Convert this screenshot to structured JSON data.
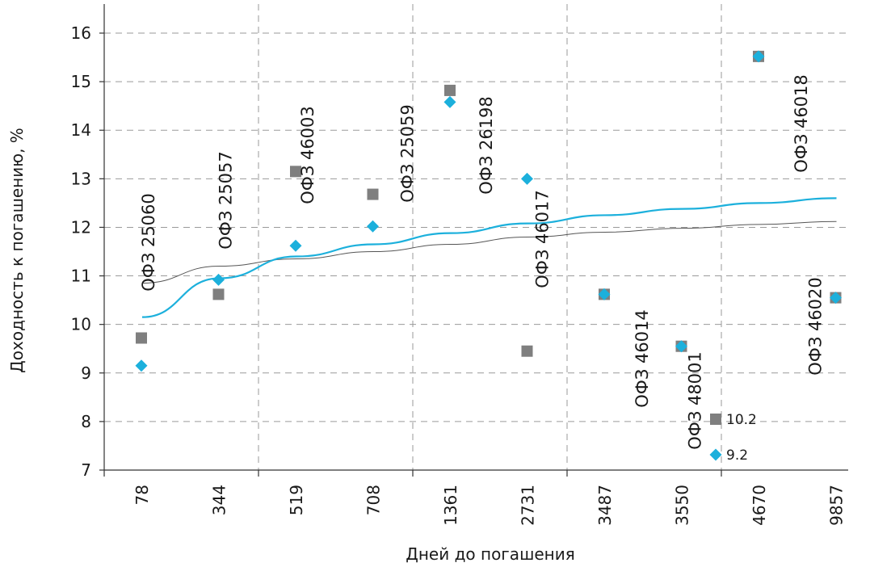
{
  "chart_data": {
    "type": "scatter",
    "title": "",
    "xlabel": "Дней до погашения",
    "ylabel": "Доходность к погашению, %",
    "ylim": [
      7,
      16.5
    ],
    "yticks": [
      7,
      8,
      9,
      10,
      11,
      12,
      13,
      14,
      15,
      16
    ],
    "categories": [
      "78",
      "344",
      "519",
      "708",
      "1361",
      "2731",
      "3487",
      "3550",
      "4670",
      "9857"
    ],
    "grid": true,
    "series": [
      {
        "name": "10.2",
        "marker": "square",
        "color": "#7f7f7f",
        "values": [
          9.72,
          10.62,
          13.15,
          12.68,
          14.82,
          9.45,
          10.62,
          9.55,
          15.52,
          10.55
        ],
        "trend_values": [
          10.85,
          11.2,
          11.35,
          11.5,
          11.65,
          11.8,
          11.9,
          11.98,
          12.06,
          12.12
        ]
      },
      {
        "name": "9.2",
        "marker": "diamond",
        "color": "#1cb0dc",
        "values": [
          9.15,
          10.92,
          11.62,
          12.02,
          14.58,
          13.0,
          10.62,
          9.55,
          15.52,
          10.55
        ],
        "trend_values": [
          10.15,
          10.95,
          11.4,
          11.65,
          11.88,
          12.08,
          12.25,
          12.38,
          12.5,
          12.6
        ]
      }
    ],
    "point_labels": [
      {
        "category": "78",
        "text": "ОФЗ 25060"
      },
      {
        "category": "344",
        "text": "ОФЗ 25057"
      },
      {
        "category": "519",
        "text": "ОФЗ 46003"
      },
      {
        "category": "708",
        "text": "ОФЗ 25059"
      },
      {
        "category": "1361",
        "text": "ОФЗ 26198"
      },
      {
        "category": "2731",
        "text": "ОФЗ 46017"
      },
      {
        "category": "3487",
        "text": "ОФЗ 46014"
      },
      {
        "category": "3550",
        "text": "ОФЗ 48001"
      },
      {
        "category": "4670",
        "text": "ОФЗ 46018"
      },
      {
        "category": "9857",
        "text": "ОФЗ 46020"
      }
    ]
  }
}
